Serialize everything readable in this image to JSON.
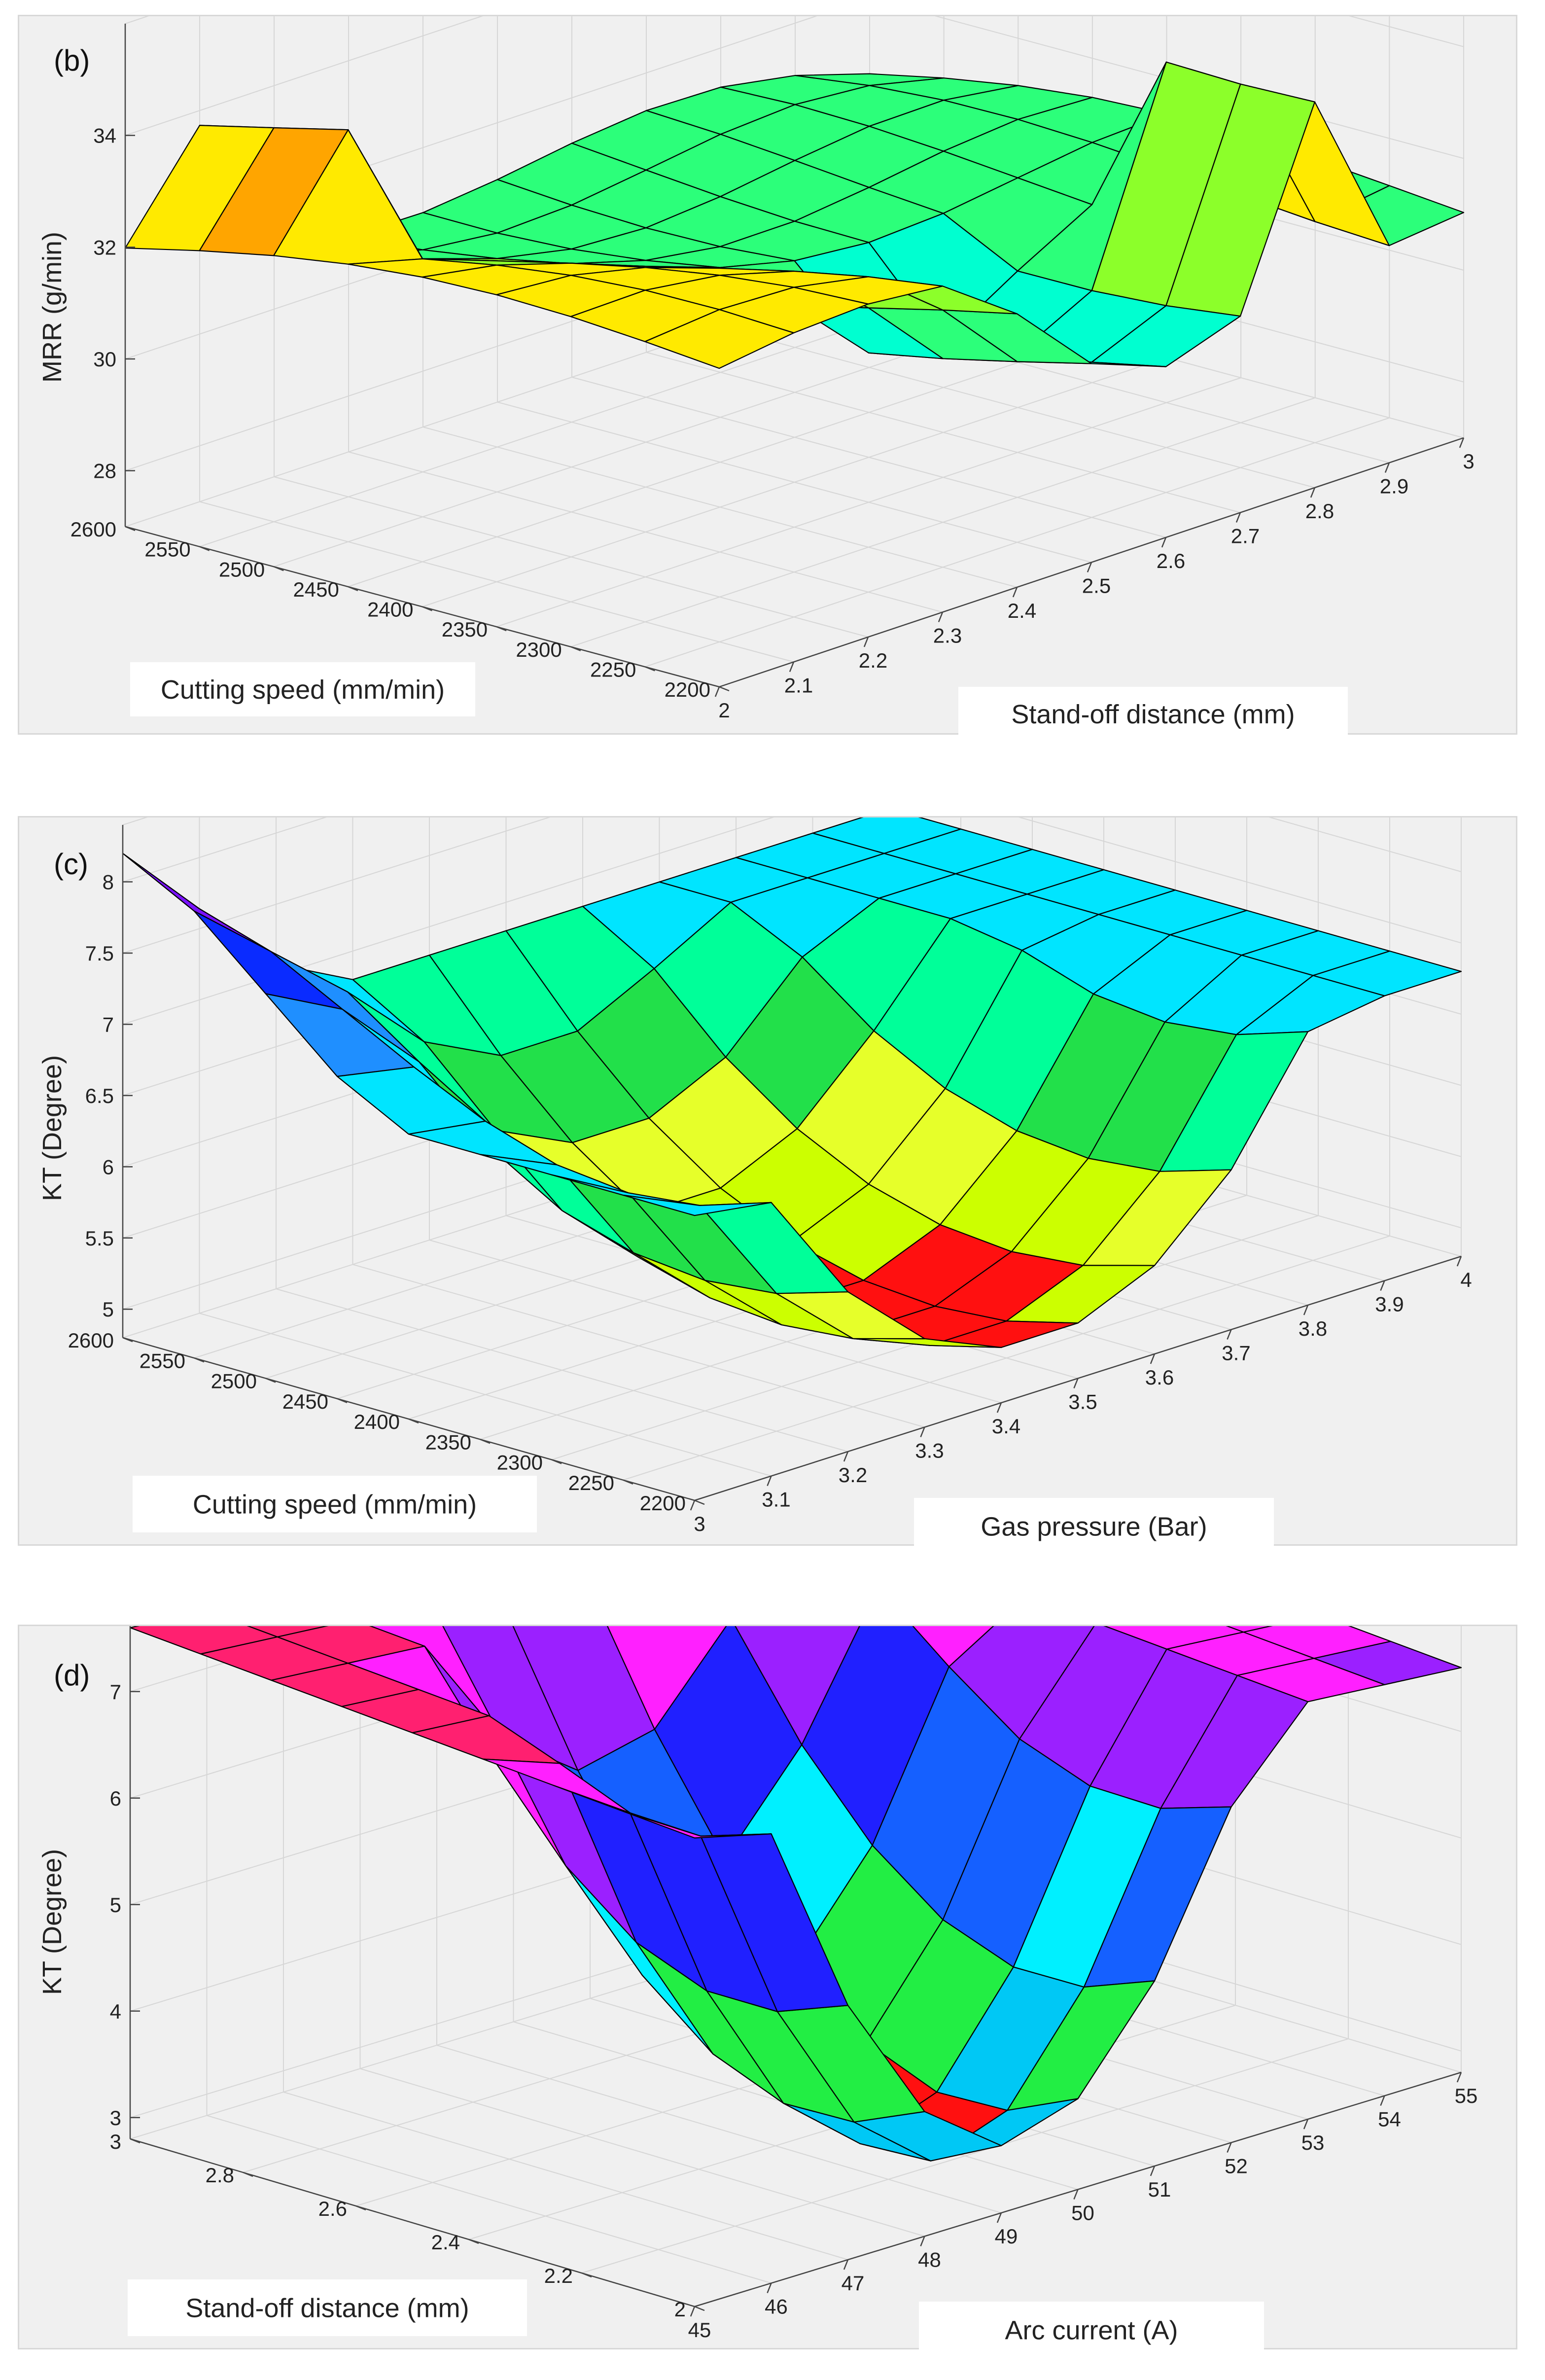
{
  "chart_data": [
    {
      "type": "surface",
      "panel_label": "(b)",
      "zlabel": "MRR (g/min)",
      "xlabel": "Stand-off distance (mm)",
      "ylabel": "Cutting speed (mm/min)",
      "x_ticks": [
        "2",
        "2.1",
        "2.2",
        "2.3",
        "2.4",
        "2.5",
        "2.6",
        "2.7",
        "2.8",
        "2.9",
        "3"
      ],
      "y_ticks": [
        "2200",
        "2250",
        "2300",
        "2350",
        "2400",
        "2450",
        "2500",
        "2550",
        "2600"
      ],
      "z_ticks": [
        "28",
        "30",
        "32",
        "34"
      ],
      "xlim": [
        2,
        3
      ],
      "ylim": [
        2200,
        2600
      ],
      "zlim": [
        27,
        36
      ],
      "color_levels": [
        "#0b1bff",
        "#1a6cff",
        "#00d5ff",
        "#00ffd0",
        "#2cff7a",
        "#8cff2a",
        "#ffea00",
        "#ffa500",
        "#ff2020",
        "#ff33ff"
      ]
    },
    {
      "type": "surface",
      "panel_label": "(c)",
      "zlabel": "KT (Degree)",
      "xlabel": "Gas pressure (Bar)",
      "ylabel": "Cutting speed (mm/min)",
      "x_ticks": [
        "3",
        "3.1",
        "3.2",
        "3.3",
        "3.4",
        "3.5",
        "3.6",
        "3.7",
        "3.8",
        "3.9",
        "4"
      ],
      "y_ticks": [
        "2200",
        "2250",
        "2300",
        "2350",
        "2400",
        "2450",
        "2500",
        "2550",
        "2600"
      ],
      "z_ticks": [
        "5",
        "5.5",
        "6",
        "6.5",
        "7",
        "7.5",
        "8"
      ],
      "xlim": [
        3,
        4
      ],
      "ylim": [
        2200,
        2600
      ],
      "zlim": [
        4.8,
        8.4
      ],
      "color_levels": [
        "#ff1010",
        "#ccff00",
        "#e6ff2a",
        "#22e04a",
        "#00ff99",
        "#00e5ff",
        "#1f8fff",
        "#0a2bff",
        "#7a12ff",
        "#ff22dd"
      ]
    },
    {
      "type": "surface",
      "panel_label": "(d)",
      "zlabel": "KT (Degree)",
      "xlabel": "Arc current (A)",
      "ylabel": "Stand-off distance (mm)",
      "x_ticks": [
        "45",
        "46",
        "47",
        "48",
        "49",
        "50",
        "51",
        "52",
        "53",
        "54",
        "55"
      ],
      "y_ticks": [
        "2",
        "2.2",
        "2.4",
        "2.6",
        "2.8",
        "3"
      ],
      "z_ticks": [
        "3",
        "4",
        "5",
        "6",
        "7"
      ],
      "xlim": [
        45,
        55
      ],
      "ylim": [
        2,
        3
      ],
      "zlim": [
        2.8,
        7.8
      ],
      "color_levels": [
        "#ff1010",
        "#00c8f5",
        "#22ee44",
        "#00f0ff",
        "#1560ff",
        "#2020ff",
        "#9b20ff",
        "#ff20ff",
        "#ff2070"
      ]
    }
  ]
}
